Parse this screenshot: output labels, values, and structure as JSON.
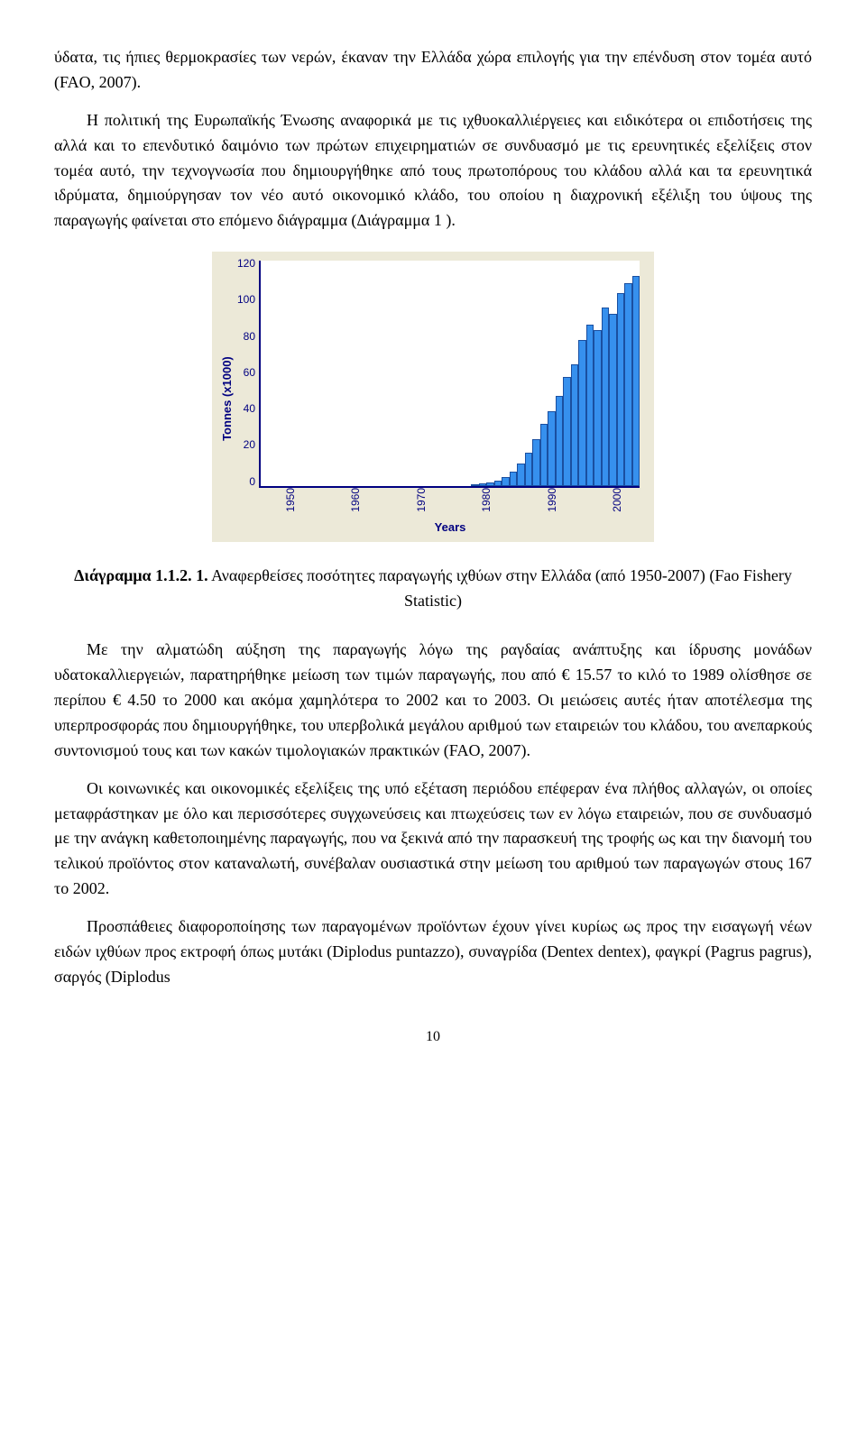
{
  "paragraphs": {
    "p1": "ύδατα, τις ήπιες θερμοκρασίες των νερών, έκαναν την Ελλάδα χώρα επιλογής για την επένδυση στον τομέα αυτό (FAO, 2007).",
    "p2": "Η πολιτική της Ευρωπαϊκής Ένωσης αναφορικά με τις ιχθυοκαλλιέργειες και ειδικότερα οι επιδοτήσεις της αλλά και το επενδυτικό δαιμόνιο των πρώτων επιχειρηματιών σε συνδυασμό με τις ερευνητικές εξελίξεις στον τομέα αυτό, την τεχνογνωσία που δημιουργήθηκε από τους πρωτοπόρους του κλάδου αλλά και τα ερευνητικά ιδρύματα, δημιούργησαν τον νέο αυτό οικονομικό κλάδο, του οποίου η διαχρονική εξέλιξη του ύψους της παραγωγής φαίνεται στο επόμενο διάγραμμα (Διάγραμμα 1 ).",
    "p3": "Με την αλματώδη αύξηση της παραγωγής λόγω της ραγδαίας ανάπτυξης και ίδρυσης μονάδων υδατοκαλλιεργειών, παρατηρήθηκε μείωση των τιμών παραγωγής, που από € 15.57 το κιλό το 1989 ολίσθησε σε περίπου € 4.50 το 2000 και ακόμα χαμηλότερα το 2002 και το 2003. Οι μειώσεις αυτές ήταν αποτέλεσμα της υπερπροσφοράς που δημιουργήθηκε, του υπερβολικά μεγάλου αριθμού των εταιρειών του κλάδου, του ανεπαρκούς συντονισμού τους και των κακών τιμολογιακών πρακτικών (FAO, 2007).",
    "p4": "Οι κοινωνικές και οικονομικές εξελίξεις της υπό εξέταση περιόδου επέφεραν ένα πλήθος αλλαγών, οι οποίες μεταφράστηκαν με όλο και περισσότερες συγχωνεύσεις και πτωχεύσεις των εν λόγω εταιρειών, που σε συνδυασμό με την ανάγκη καθετοποιημένης παραγωγής, που να ξεκινά από την παρασκευή της τροφής ως και την διανομή του τελικού προϊόντος στον καταναλωτή, συνέβαλαν ουσιαστικά στην μείωση του αριθμού των παραγωγών στους 167 το 2002.",
    "p5": "Προσπάθειες διαφοροποίησης των παραγομένων προϊόντων έχουν γίνει κυρίως ως προς την εισαγωγή νέων ειδών ιχθύων προς εκτροφή όπως μυτάκι (Diplodus puntazzo), συναγρίδα (Dentex dentex), φαγκρί (Pagrus pagrus), σαργός (Diplodus"
  },
  "caption": {
    "bold": "Διάγραμμα 1.1.2. 1.",
    "rest": " Αναφερθείσες ποσότητες παραγωγής ιχθύων στην Ελλάδα (από 1950-2007) (Fao Fishery Statistic)"
  },
  "chart": {
    "type": "bar",
    "ylabel": "Tonnes (x1000)",
    "xlabel": "Years",
    "ylim": [
      0,
      120
    ],
    "ytick_step": 20,
    "yticks": [
      "120",
      "100",
      "80",
      "60",
      "40",
      "20",
      "0"
    ],
    "xtick_labels": [
      "1950",
      "1960",
      "1970",
      "1980",
      "1990",
      "2000"
    ],
    "xtick_positions": [
      0,
      10,
      20,
      30,
      40,
      50
    ],
    "bar_color": "#3690ee",
    "bar_border": "#1a4fa0",
    "background_color": "#ece9d8",
    "plot_background": "#ffffff",
    "axis_color": "#000080",
    "label_color": "#000080",
    "label_fontsize": 13,
    "tick_fontsize": 12,
    "values": [
      0,
      0,
      0,
      0,
      0,
      0,
      0,
      0,
      0,
      0,
      0,
      0,
      0,
      0,
      0,
      0,
      0,
      0,
      0,
      0,
      0,
      0,
      0,
      0,
      0,
      0,
      0,
      0,
      0,
      0,
      0,
      0,
      0,
      0,
      0,
      0,
      1,
      1.5,
      2,
      3,
      5,
      8,
      12,
      18,
      25,
      33,
      40,
      48,
      58,
      65,
      78,
      86,
      83,
      95,
      92,
      103,
      108,
      112
    ]
  },
  "page_number": "10"
}
